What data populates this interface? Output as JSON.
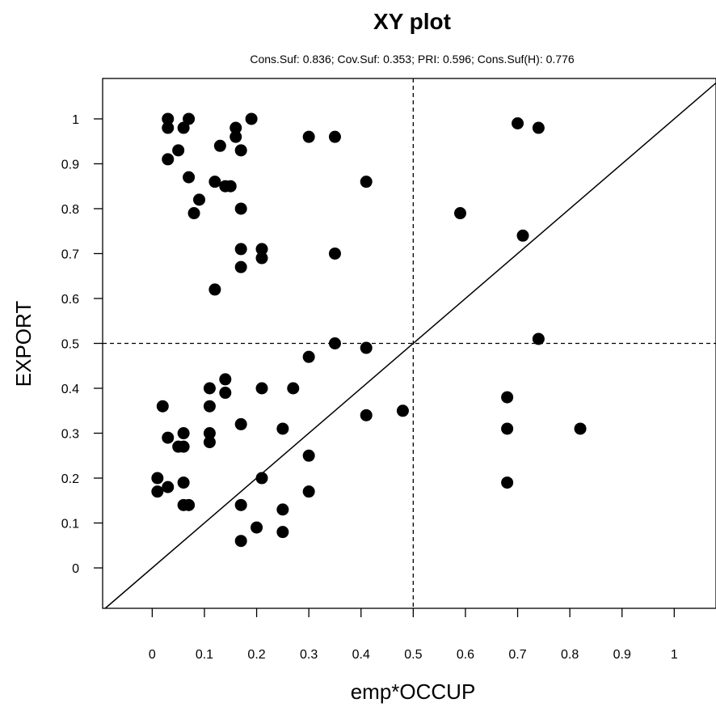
{
  "chart_data": {
    "type": "scatter",
    "title": "XY plot",
    "subtitle": "Cons.Suf: 0.836; Cov.Suf: 0.353; PRI: 0.596; Cons.Suf(H): 0.776",
    "xlabel": "emp*OCCUP",
    "ylabel": "EXPORT",
    "xlim": [
      -0.095,
      1.08
    ],
    "ylim": [
      -0.09,
      1.09
    ],
    "x_ticks": [
      0,
      0.1,
      0.2,
      0.3,
      0.4,
      0.5,
      0.6,
      0.7,
      0.8,
      0.9,
      1
    ],
    "y_ticks": [
      0,
      0.1,
      0.2,
      0.3,
      0.4,
      0.5,
      0.6,
      0.7,
      0.8,
      0.9,
      1
    ],
    "x_tick_labels": [
      "0",
      "0.1",
      "0.2",
      "0.3",
      "0.4",
      "0.5",
      "0.6",
      "0.7",
      "0.8",
      "0.9",
      "1"
    ],
    "y_tick_labels": [
      "0",
      "0.1",
      "0.2",
      "0.3",
      "0.4",
      "0.5",
      "0.6",
      "0.7",
      "0.8",
      "0.9",
      "1"
    ],
    "reference_lines": {
      "vertical_x": 0.5,
      "horizontal_y": 0.5,
      "diagonal": true
    },
    "grid": false,
    "point_color": "#000000",
    "points": [
      {
        "x": 0.03,
        "y": 1.0
      },
      {
        "x": 0.07,
        "y": 1.0
      },
      {
        "x": 0.19,
        "y": 1.0
      },
      {
        "x": 0.03,
        "y": 0.98
      },
      {
        "x": 0.06,
        "y": 0.98
      },
      {
        "x": 0.16,
        "y": 0.98
      },
      {
        "x": 0.16,
        "y": 0.96
      },
      {
        "x": 0.3,
        "y": 0.96
      },
      {
        "x": 0.35,
        "y": 0.96
      },
      {
        "x": 0.13,
        "y": 0.94
      },
      {
        "x": 0.05,
        "y": 0.93
      },
      {
        "x": 0.17,
        "y": 0.93
      },
      {
        "x": 0.03,
        "y": 0.91
      },
      {
        "x": 0.07,
        "y": 0.87
      },
      {
        "x": 0.12,
        "y": 0.86
      },
      {
        "x": 0.14,
        "y": 0.85
      },
      {
        "x": 0.15,
        "y": 0.85
      },
      {
        "x": 0.41,
        "y": 0.86
      },
      {
        "x": 0.09,
        "y": 0.82
      },
      {
        "x": 0.08,
        "y": 0.79
      },
      {
        "x": 0.17,
        "y": 0.8
      },
      {
        "x": 0.17,
        "y": 0.71
      },
      {
        "x": 0.21,
        "y": 0.71
      },
      {
        "x": 0.21,
        "y": 0.69
      },
      {
        "x": 0.35,
        "y": 0.7
      },
      {
        "x": 0.17,
        "y": 0.67
      },
      {
        "x": 0.12,
        "y": 0.62
      },
      {
        "x": 0.7,
        "y": 0.99
      },
      {
        "x": 0.74,
        "y": 0.98
      },
      {
        "x": 0.59,
        "y": 0.79
      },
      {
        "x": 0.71,
        "y": 0.74
      },
      {
        "x": 0.74,
        "y": 0.51
      },
      {
        "x": 0.35,
        "y": 0.5
      },
      {
        "x": 0.41,
        "y": 0.49
      },
      {
        "x": 0.3,
        "y": 0.47
      },
      {
        "x": 0.14,
        "y": 0.42
      },
      {
        "x": 0.11,
        "y": 0.4
      },
      {
        "x": 0.21,
        "y": 0.4
      },
      {
        "x": 0.27,
        "y": 0.4
      },
      {
        "x": 0.14,
        "y": 0.39
      },
      {
        "x": 0.02,
        "y": 0.36
      },
      {
        "x": 0.11,
        "y": 0.36
      },
      {
        "x": 0.48,
        "y": 0.35
      },
      {
        "x": 0.41,
        "y": 0.34
      },
      {
        "x": 0.17,
        "y": 0.32
      },
      {
        "x": 0.25,
        "y": 0.31
      },
      {
        "x": 0.03,
        "y": 0.29
      },
      {
        "x": 0.06,
        "y": 0.3
      },
      {
        "x": 0.11,
        "y": 0.3
      },
      {
        "x": 0.11,
        "y": 0.28
      },
      {
        "x": 0.05,
        "y": 0.27
      },
      {
        "x": 0.06,
        "y": 0.27
      },
      {
        "x": 0.3,
        "y": 0.25
      },
      {
        "x": 0.01,
        "y": 0.2
      },
      {
        "x": 0.21,
        "y": 0.2
      },
      {
        "x": 0.06,
        "y": 0.19
      },
      {
        "x": 0.03,
        "y": 0.18
      },
      {
        "x": 0.01,
        "y": 0.17
      },
      {
        "x": 0.3,
        "y": 0.17
      },
      {
        "x": 0.06,
        "y": 0.14
      },
      {
        "x": 0.07,
        "y": 0.14
      },
      {
        "x": 0.17,
        "y": 0.14
      },
      {
        "x": 0.25,
        "y": 0.13
      },
      {
        "x": 0.2,
        "y": 0.09
      },
      {
        "x": 0.25,
        "y": 0.08
      },
      {
        "x": 0.17,
        "y": 0.06
      },
      {
        "x": 0.68,
        "y": 0.38
      },
      {
        "x": 0.68,
        "y": 0.31
      },
      {
        "x": 0.82,
        "y": 0.31
      },
      {
        "x": 0.68,
        "y": 0.19
      }
    ]
  }
}
